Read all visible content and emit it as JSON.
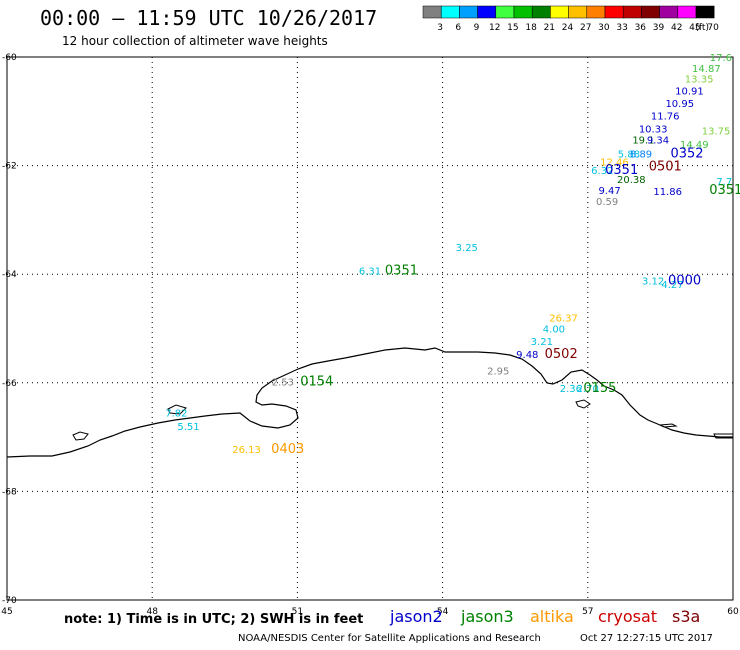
{
  "title": "00:00 – 11:59 UTC 10/26/2017",
  "subtitle": "12 hour collection of altimeter wave heights",
  "note": "note: 1) Time is in UTC; 2) SWH is in feet",
  "credit": "NOAA/NESDIS Center for Satellite Applications and Research",
  "generated": "Oct 27 12:27:15 UTC 2017",
  "color_scale": {
    "unit": "(ft)",
    "bins": [
      {
        "label": "3",
        "color": "#808080"
      },
      {
        "label": "6",
        "color": "#00ffff"
      },
      {
        "label": "9",
        "color": "#00a0ff"
      },
      {
        "label": "12",
        "color": "#0000ff"
      },
      {
        "label": "15",
        "color": "#40ff40"
      },
      {
        "label": "18",
        "color": "#00c000"
      },
      {
        "label": "21",
        "color": "#008000"
      },
      {
        "label": "24",
        "color": "#ffff00"
      },
      {
        "label": "27",
        "color": "#ffc000"
      },
      {
        "label": "30",
        "color": "#ff8000"
      },
      {
        "label": "33",
        "color": "#ff0000"
      },
      {
        "label": "36",
        "color": "#c00000"
      },
      {
        "label": "39",
        "color": "#800000"
      },
      {
        "label": "42",
        "color": "#a000a0"
      },
      {
        "label": "45",
        "color": "#ff00ff"
      },
      {
        "label": "70",
        "color": "#000000"
      }
    ]
  },
  "satellites": [
    {
      "name": "jason2",
      "color": "#0000cc"
    },
    {
      "name": "jason3",
      "color": "#008000"
    },
    {
      "name": "altika",
      "color": "#ff9900"
    },
    {
      "name": "cryosat",
      "color": "#cc0000"
    },
    {
      "name": "s3a",
      "color": "#800000"
    }
  ],
  "chart_data": {
    "type": "map",
    "lon_range": [
      45,
      60
    ],
    "lat_range": [
      -70,
      -60
    ],
    "lon_ticks": [
      "45",
      "48",
      "51",
      "54",
      "57",
      "60"
    ],
    "lat_ticks": [
      "-60",
      "-62",
      "-64",
      "-66",
      "-68",
      "-70"
    ],
    "grid": true,
    "observations": [
      {
        "text": "17.6",
        "lon": 59.75,
        "lat": -60.0,
        "color": "#40c040"
      },
      {
        "text": "14.87",
        "lon": 59.45,
        "lat": -60.2,
        "color": "#40c040"
      },
      {
        "text": "13.35",
        "lon": 59.3,
        "lat": -60.4,
        "color": "#80d040"
      },
      {
        "text": "10.91",
        "lon": 59.1,
        "lat": -60.62,
        "color": "#0000cc"
      },
      {
        "text": "10.95",
        "lon": 58.9,
        "lat": -60.85,
        "color": "#0000cc"
      },
      {
        "text": "11.76",
        "lon": 58.6,
        "lat": -61.08,
        "color": "#0000cc"
      },
      {
        "text": "10.33",
        "lon": 58.35,
        "lat": -61.32,
        "color": "#0000cc"
      },
      {
        "text": "13.75",
        "lon": 59.65,
        "lat": -61.35,
        "color": "#80d040"
      },
      {
        "text": "19.1",
        "lon": 58.15,
        "lat": -61.52,
        "color": "#006000"
      },
      {
        "text": "9.34",
        "lon": 58.45,
        "lat": -61.52,
        "color": "#0000cc"
      },
      {
        "text": "14.49",
        "lon": 59.2,
        "lat": -61.6,
        "color": "#40c040"
      },
      {
        "text": "5.88",
        "lon": 57.85,
        "lat": -61.78,
        "color": "#00c0e0"
      },
      {
        "text": "8.89",
        "lon": 58.1,
        "lat": -61.78,
        "color": "#0080ff"
      },
      {
        "text": "0352",
        "lon": 59.05,
        "lat": -61.78,
        "color": "#0000cc",
        "id": true
      },
      {
        "text": "12.46",
        "lon": 57.55,
        "lat": -61.92,
        "color": "#ffc000"
      },
      {
        "text": "0501",
        "lon": 58.6,
        "lat": -62.02,
        "color": "#800000",
        "id": true
      },
      {
        "text": "6.32",
        "lon": 57.3,
        "lat": -62.08,
        "color": "#00c0e0"
      },
      {
        "text": "0351",
        "lon": 57.7,
        "lat": -62.08,
        "color": "#0000cc",
        "id": true
      },
      {
        "text": "20.38",
        "lon": 57.9,
        "lat": -62.25,
        "color": "#006000"
      },
      {
        "text": "7.7",
        "lon": 59.82,
        "lat": -62.28,
        "color": "#00c0e0"
      },
      {
        "text": "9.47",
        "lon": 57.45,
        "lat": -62.45,
        "color": "#0000cc"
      },
      {
        "text": "11.86",
        "lon": 58.65,
        "lat": -62.47,
        "color": "#0000cc"
      },
      {
        "text": "0351",
        "lon": 59.85,
        "lat": -62.45,
        "color": "#008000",
        "id": true
      },
      {
        "text": "0.59",
        "lon": 57.4,
        "lat": -62.65,
        "color": "#808080"
      },
      {
        "text": "3.25",
        "lon": 54.5,
        "lat": -63.5,
        "color": "#00c0e0"
      },
      {
        "text": "6.31",
        "lon": 52.5,
        "lat": -63.93,
        "color": "#00c0e0"
      },
      {
        "text": "0351",
        "lon": 53.15,
        "lat": -63.93,
        "color": "#008000",
        "id": true
      },
      {
        "text": "3.12",
        "lon": 58.35,
        "lat": -64.12,
        "color": "#00c0e0"
      },
      {
        "text": "4.27",
        "lon": 58.75,
        "lat": -64.18,
        "color": "#00c0e0"
      },
      {
        "text": "0000",
        "lon": 59.0,
        "lat": -64.12,
        "color": "#0000cc",
        "id": true
      },
      {
        "text": "26.37",
        "lon": 56.5,
        "lat": -64.8,
        "color": "#ffc000"
      },
      {
        "text": "4.00",
        "lon": 56.3,
        "lat": -65.0,
        "color": "#00c0e0"
      },
      {
        "text": "3.21",
        "lon": 56.05,
        "lat": -65.23,
        "color": "#00c0e0"
      },
      {
        "text": "9.48",
        "lon": 55.75,
        "lat": -65.47,
        "color": "#0000cc"
      },
      {
        "text": "0502",
        "lon": 56.45,
        "lat": -65.47,
        "color": "#800000",
        "id": true
      },
      {
        "text": "2.95",
        "lon": 55.15,
        "lat": -65.77,
        "color": "#808080"
      },
      {
        "text": "2.53",
        "lon": 50.7,
        "lat": -65.98,
        "color": "#808080"
      },
      {
        "text": "0154",
        "lon": 51.4,
        "lat": -65.98,
        "color": "#008000",
        "id": true
      },
      {
        "text": "2.36",
        "lon": 56.65,
        "lat": -66.1,
        "color": "#00c0e0"
      },
      {
        "text": "2.70",
        "lon": 57.0,
        "lat": -66.1,
        "color": "#00c0e0"
      },
      {
        "text": "0155",
        "lon": 57.25,
        "lat": -66.1,
        "color": "#008000",
        "id": true
      },
      {
        "text": "7.82",
        "lon": 48.5,
        "lat": -66.55,
        "color": "#00c0e0"
      },
      {
        "text": "5.51",
        "lon": 48.75,
        "lat": -66.8,
        "color": "#00c0e0"
      },
      {
        "text": "26.13",
        "lon": 49.95,
        "lat": -67.22,
        "color": "#ffc000"
      },
      {
        "text": "0403",
        "lon": 50.8,
        "lat": -67.22,
        "color": "#ff9900",
        "id": true
      }
    ]
  }
}
